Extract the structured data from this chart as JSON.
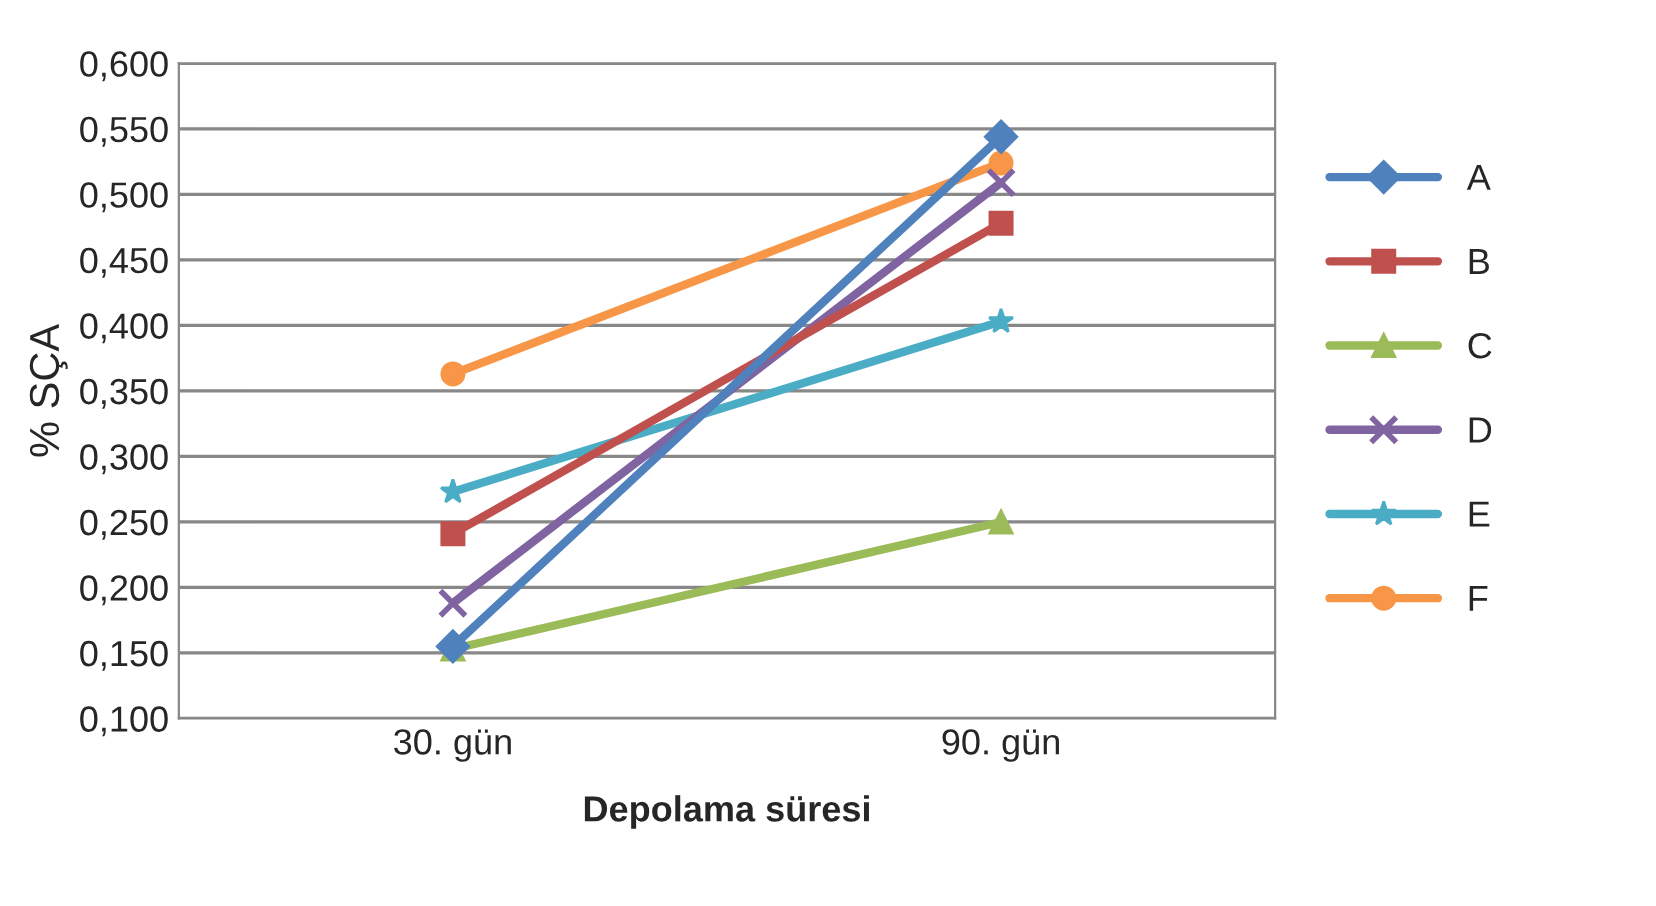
{
  "chart_data": {
    "type": "line",
    "xlabel": "Depolama süresi",
    "ylabel": "% SÇA",
    "categories": [
      "30. gün",
      "90. gün"
    ],
    "series": [
      {
        "name": "A",
        "color": "#4f81bd",
        "marker": "diamond",
        "values": [
          0.155,
          0.544
        ]
      },
      {
        "name": "B",
        "color": "#c0504d",
        "marker": "square",
        "values": [
          0.241,
          0.478
        ]
      },
      {
        "name": "C",
        "color": "#9bbb59",
        "marker": "triangle",
        "values": [
          0.153,
          0.25
        ]
      },
      {
        "name": "D",
        "color": "#8064a2",
        "marker": "cross",
        "values": [
          0.188,
          0.509
        ]
      },
      {
        "name": "E",
        "color": "#4bacc6",
        "marker": "star",
        "values": [
          0.273,
          0.403
        ]
      },
      {
        "name": "F",
        "color": "#f79646",
        "marker": "circle",
        "values": [
          0.363,
          0.524
        ]
      }
    ],
    "ylim": [
      0.1,
      0.6
    ],
    "yticks": [
      {
        "value": 0.1,
        "label": "0,100"
      },
      {
        "value": 0.15,
        "label": "0,150"
      },
      {
        "value": 0.2,
        "label": "0,200"
      },
      {
        "value": 0.25,
        "label": "0,250"
      },
      {
        "value": 0.3,
        "label": "0,300"
      },
      {
        "value": 0.35,
        "label": "0,350"
      },
      {
        "value": 0.4,
        "label": "0,400"
      },
      {
        "value": 0.45,
        "label": "0,450"
      },
      {
        "value": 0.5,
        "label": "0,500"
      },
      {
        "value": 0.55,
        "label": "0,550"
      },
      {
        "value": 0.6,
        "label": "0,600"
      }
    ],
    "grid": "y",
    "legend": "right"
  }
}
